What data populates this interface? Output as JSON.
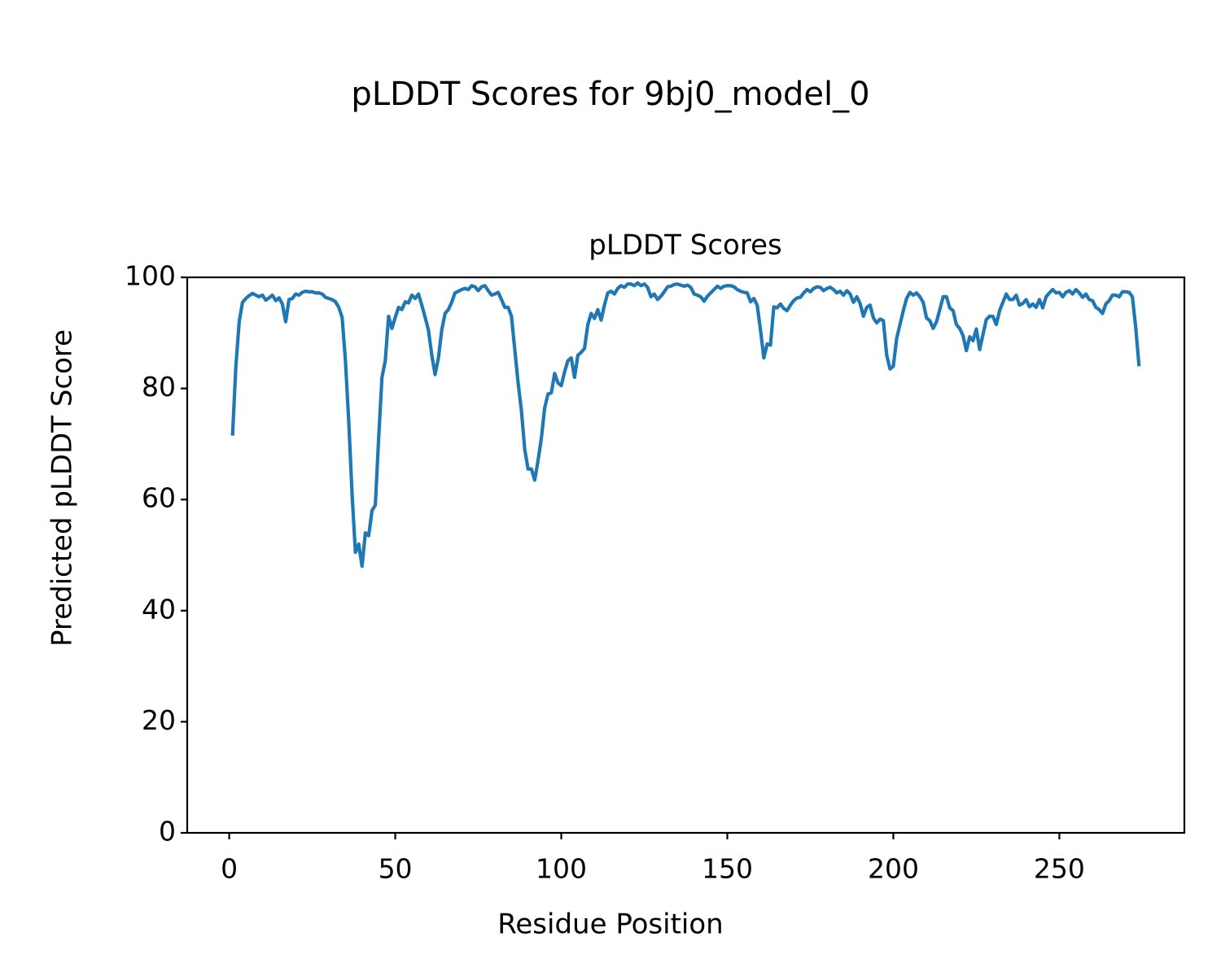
{
  "chart_data": {
    "type": "line",
    "title": "pLDDT Scores for 9bj0_model_0",
    "subtitle": "pLDDT Scores",
    "xlabel": "Residue Position",
    "ylabel": "Predicted pLDDT Score",
    "xlim": [
      -12.65,
      287.65
    ],
    "ylim": [
      0,
      100
    ],
    "xticks": [
      0,
      50,
      100,
      150,
      200,
      250
    ],
    "yticks": [
      0,
      20,
      40,
      60,
      80,
      100
    ],
    "grid": false,
    "x": [
      1,
      2,
      3,
      4,
      5,
      6,
      7,
      8,
      9,
      10,
      11,
      12,
      13,
      14,
      15,
      16,
      17,
      18,
      19,
      20,
      21,
      22,
      23,
      24,
      25,
      26,
      27,
      28,
      29,
      30,
      31,
      32,
      33,
      34,
      35,
      36,
      37,
      38,
      39,
      40,
      41,
      42,
      43,
      44,
      45,
      46,
      47,
      48,
      49,
      50,
      51,
      52,
      53,
      54,
      55,
      56,
      57,
      58,
      59,
      60,
      61,
      62,
      63,
      64,
      65,
      66,
      67,
      68,
      69,
      70,
      71,
      72,
      73,
      74,
      75,
      76,
      77,
      78,
      79,
      80,
      81,
      82,
      83,
      84,
      85,
      86,
      87,
      88,
      89,
      90,
      91,
      92,
      93,
      94,
      95,
      96,
      97,
      98,
      99,
      100,
      101,
      102,
      103,
      104,
      105,
      106,
      107,
      108,
      109,
      110,
      111,
      112,
      113,
      114,
      115,
      116,
      117,
      118,
      119,
      120,
      121,
      122,
      123,
      124,
      125,
      126,
      127,
      128,
      129,
      130,
      131,
      132,
      133,
      134,
      135,
      136,
      137,
      138,
      139,
      140,
      141,
      142,
      143,
      144,
      145,
      146,
      147,
      148,
      149,
      150,
      151,
      152,
      153,
      154,
      155,
      156,
      157,
      158,
      159,
      160,
      161,
      162,
      163,
      164,
      165,
      166,
      167,
      168,
      169,
      170,
      171,
      172,
      173,
      174,
      175,
      176,
      177,
      178,
      179,
      180,
      181,
      182,
      183,
      184,
      185,
      186,
      187,
      188,
      189,
      190,
      191,
      192,
      193,
      194,
      195,
      196,
      197,
      198,
      199,
      200,
      201,
      202,
      203,
      204,
      205,
      206,
      207,
      208,
      209,
      210,
      211,
      212,
      213,
      214,
      215,
      216,
      217,
      218,
      219,
      220,
      221,
      222,
      223,
      224,
      225,
      226,
      227,
      228,
      229,
      230,
      231,
      232,
      233,
      234,
      235,
      236,
      237,
      238,
      239,
      240,
      241,
      242,
      243,
      244,
      245,
      246,
      247,
      248,
      249,
      250,
      251,
      252,
      253,
      254,
      255,
      256,
      257,
      258,
      259,
      260,
      261,
      262,
      263,
      264,
      265,
      266,
      267,
      268,
      269,
      270,
      271,
      272,
      273,
      274
    ],
    "series": [
      {
        "name": "pLDDT",
        "color": "#1f77b4",
        "values": [
          71.5,
          84,
          92,
          95.5,
          96.2,
          96.7,
          97.1,
          96.8,
          96.5,
          96.8,
          95.9,
          96.3,
          96.8,
          95.8,
          96.3,
          95.2,
          92,
          96,
          96.2,
          97,
          96.8,
          97.3,
          97.5,
          97.4,
          97.4,
          97.2,
          97.2,
          97.0,
          96.4,
          96.2,
          96.0,
          95.6,
          94.6,
          92.8,
          85,
          74,
          61,
          50.5,
          52,
          48,
          54,
          53.5,
          58,
          59,
          71,
          82,
          85,
          93,
          90.8,
          92.8,
          94.6,
          94.2,
          95.6,
          95.4,
          96.8,
          96.2,
          97,
          95,
          92.8,
          90.5,
          86,
          82.5,
          85.5,
          90.5,
          93.5,
          94.2,
          95.5,
          97.2,
          97.5,
          97.8,
          98,
          97.8,
          98.5,
          98.3,
          97.6,
          98.3,
          98.5,
          97.6,
          96.8,
          97,
          97.3,
          96,
          94.6,
          94.6,
          93,
          87,
          81,
          76,
          69,
          65.5,
          65.5,
          63.5,
          67,
          71,
          76.5,
          79,
          79.2,
          82.7,
          81,
          80.5,
          83,
          85,
          85.5,
          82,
          86,
          86.5,
          87.2,
          91.5,
          93.5,
          92.6,
          94.2,
          92.3,
          95,
          97.2,
          97.5,
          97,
          98,
          98.5,
          98.2,
          98.8,
          98.8,
          98.5,
          99,
          98.5,
          98.8,
          98.2,
          96.5,
          97,
          96,
          96.6,
          97.4,
          98.3,
          98.4,
          98.7,
          98.8,
          98.6,
          98.4,
          98.6,
          98.2,
          97,
          96.8,
          96.5,
          95.7,
          96.6,
          97.2,
          97.8,
          98.4,
          98,
          98.4,
          98.5,
          98.5,
          98.3,
          97.8,
          97.5,
          97.3,
          97.2,
          95.6,
          96.2,
          95,
          90.5,
          85.5,
          88,
          87.8,
          94.7,
          94.5,
          95.2,
          94.4,
          94,
          95,
          95.8,
          96.3,
          96.4,
          97.2,
          97.8,
          97.4,
          98,
          98.3,
          98.2,
          97.6,
          98,
          98.2,
          97.8,
          97.2,
          97.5,
          96.8,
          97.6,
          97,
          95.5,
          96.5,
          95.3,
          93,
          94.6,
          95,
          92.7,
          91.8,
          92.5,
          92.2,
          86,
          83.5,
          84,
          89,
          91.5,
          94,
          96.2,
          97.3,
          96.8,
          97.2,
          96.5,
          95.5,
          92.7,
          92.2,
          90.8,
          92,
          94.2,
          96.5,
          96.5,
          94.5,
          94,
          91.5,
          90.8,
          89.5,
          86.8,
          89.3,
          88.6,
          90.7,
          87,
          89.7,
          92.4,
          93,
          93,
          91.5,
          94,
          95.5,
          97,
          96,
          96,
          96.8,
          95,
          95.3,
          96,
          94.7,
          95.2,
          94.6,
          96,
          94.5,
          96.5,
          97.2,
          97.8,
          97.2,
          97.3,
          96.5,
          97.3,
          97.6,
          97.0,
          97.8,
          97.2,
          96.4,
          97,
          96,
          95.8,
          94.6,
          94.2,
          93.5,
          95.2,
          95.8,
          96.8,
          96.8,
          96.5,
          97.4,
          97.4,
          97.3,
          96.5,
          91,
          84
        ]
      }
    ]
  }
}
